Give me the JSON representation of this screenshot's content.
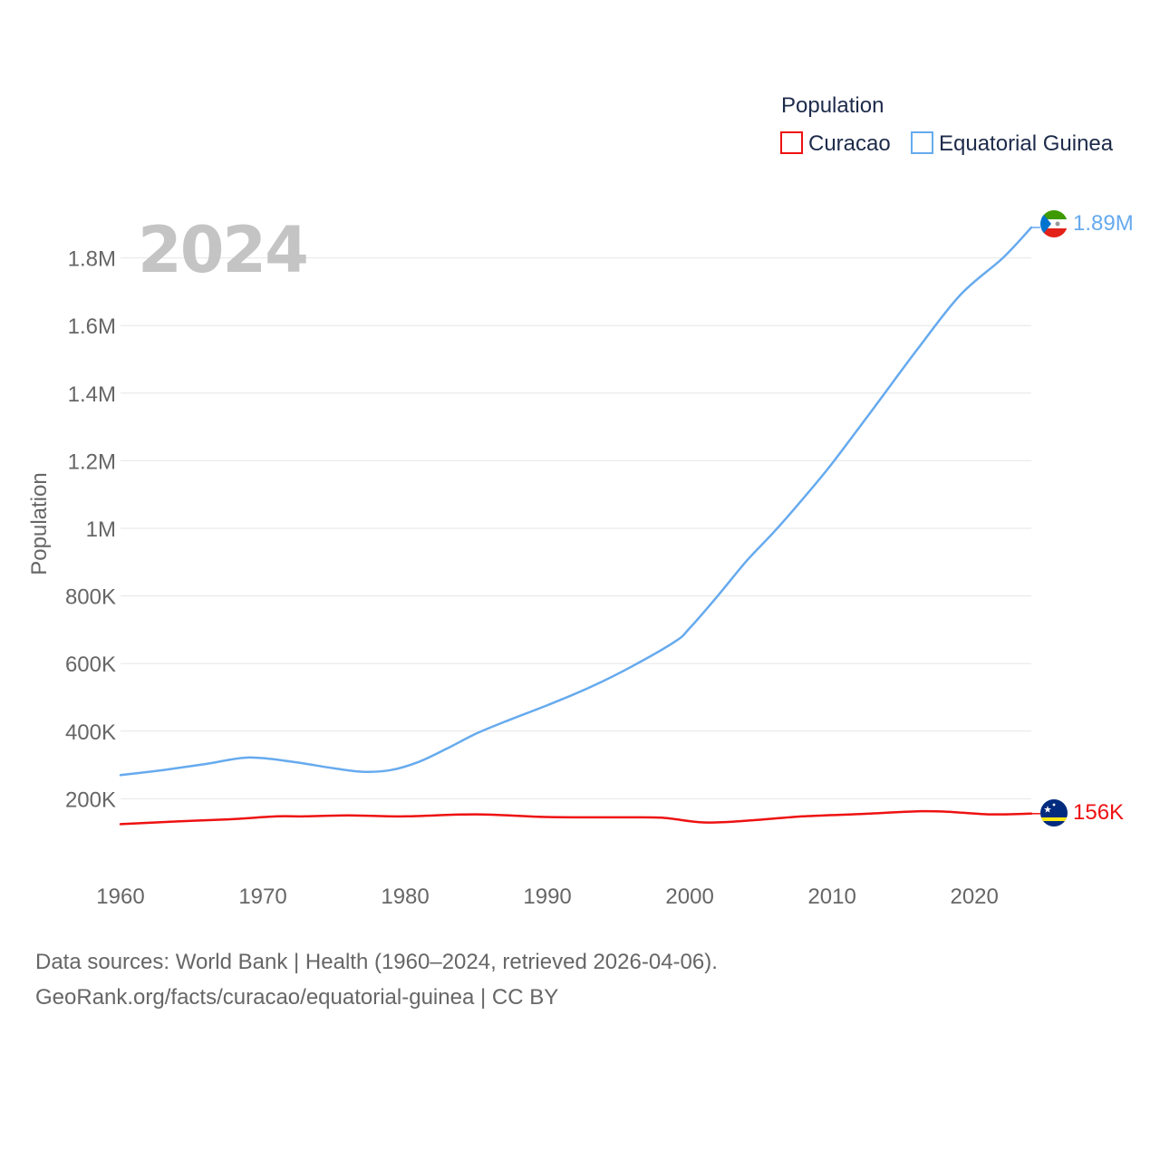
{
  "chart_data": {
    "type": "line",
    "year_label": "2024",
    "ylabel": "Population",
    "legend": {
      "title": "Population",
      "placement": "top-right"
    },
    "x_ticks": [
      1960,
      1970,
      1980,
      1990,
      2000,
      2010,
      2020
    ],
    "xlim": [
      1960,
      2024
    ],
    "y_ticks": [
      {
        "value": 200000,
        "label": "200K"
      },
      {
        "value": 400000,
        "label": "400K"
      },
      {
        "value": 600000,
        "label": "600K"
      },
      {
        "value": 800000,
        "label": "800K"
      },
      {
        "value": 1000000,
        "label": "1M"
      },
      {
        "value": 1200000,
        "label": "1.2M"
      },
      {
        "value": 1400000,
        "label": "1.4M"
      },
      {
        "value": 1600000,
        "label": "1.6M"
      },
      {
        "value": 1800000,
        "label": "1.8M"
      }
    ],
    "ylim": [
      0,
      1900000
    ],
    "grid": true,
    "series": [
      {
        "name": "Curacao",
        "color": "#ee1111",
        "end_label": "156K",
        "flag": "curacao-flag",
        "x": [
          1960,
          1964,
          1968,
          1971,
          1973,
          1976,
          1980,
          1985,
          1990,
          1995,
          1998,
          2001,
          2004,
          2008,
          2012,
          2016,
          2018,
          2021,
          2024
        ],
        "y": [
          125000,
          133000,
          140000,
          148000,
          148000,
          151000,
          148000,
          154000,
          146000,
          145000,
          144000,
          130000,
          135000,
          148000,
          155000,
          163000,
          162000,
          154000,
          156000
        ]
      },
      {
        "name": "Equatorial Guinea",
        "color": "#66aaee",
        "end_label": "1.89M",
        "flag": "equatorial-guinea-flag",
        "x": [
          1960,
          1963,
          1966,
          1969,
          1972,
          1975,
          1977,
          1979,
          1981,
          1983,
          1985,
          1987,
          1990,
          1993,
          1996,
          1999,
          2000,
          2002,
          2004,
          2006,
          2008,
          2010,
          2013,
          2016,
          2019,
          2022,
          2024
        ],
        "y": [
          270000,
          285000,
          303000,
          322000,
          310000,
          290000,
          280000,
          285000,
          310000,
          350000,
          393000,
          428000,
          477000,
          530000,
          593000,
          666000,
          705000,
          802000,
          904000,
          993000,
          1090000,
          1192000,
          1360000,
          1530000,
          1690000,
          1800000,
          1890000
        ]
      }
    ]
  },
  "footer": {
    "line1": "Data sources: World Bank | Health (1960–2024, retrieved 2026-04-06).",
    "line2": "GeoRank.org/facts/curacao/equatorial-guinea | CC BY"
  }
}
